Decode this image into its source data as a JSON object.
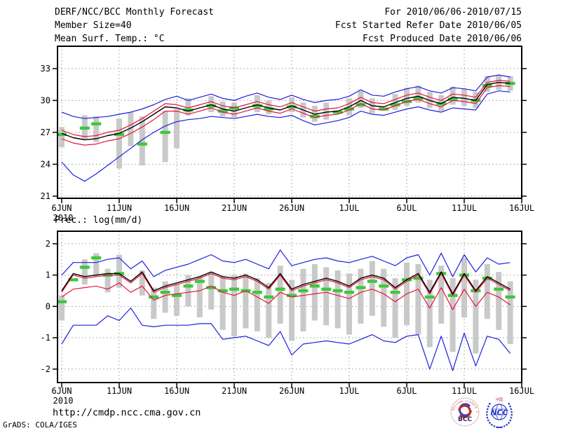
{
  "header": {
    "title": "DERF/NCC/BCC Monthly Forecast",
    "for_range": "For 2010/06/06-2010/07/15",
    "member_size": "Member Size=40",
    "fcst_started": "Fcst Started Refer Date 2010/06/05",
    "temp_panel_label": "Mean Surf. Temp.: °C",
    "fcst_produced": "Fcst Produced Date 2010/06/06",
    "prec_panel_label": "Prec.: log(mm/d)"
  },
  "footer": {
    "url": "http://cmdp.ncc.cma.gov.cn",
    "grads_credit": "GrADS: COLA/IGES",
    "logos": [
      {
        "name": "bcc-logo",
        "label": "BCC",
        "ring_text": "BEIJING CLIMATE CENTER"
      },
      {
        "name": "ncc-logo",
        "label": "NCC",
        "top_text": "中国"
      }
    ]
  },
  "colors": {
    "blue": "#1e1ee0",
    "red": "#e6143c",
    "black": "#000000",
    "green": "#3cc83c",
    "bar": "#c9c9c9",
    "grid": "#999999",
    "bcc_navy": "#1a2a7a",
    "logo_blue": "#2b3fd0",
    "logo_red": "#cc2222"
  },
  "chart_data": [
    {
      "type": "line",
      "name": "mean-surface-temperature",
      "title": "Mean Surf. Temp.: °C",
      "xlabel": "",
      "ylabel": "°C",
      "grid": "dotted",
      "legend": false,
      "n_days": 40,
      "x_range": [
        "6JUN2010",
        "16JUL2010"
      ],
      "x_tick_labels": [
        "6JUN",
        "11JUN",
        "16JUN",
        "21JUN",
        "26JUN",
        "1JUL",
        "6JUL",
        "11JUL",
        "16JUL"
      ],
      "x_tick_days": [
        0,
        5,
        10,
        15,
        20,
        25,
        30,
        35,
        40
      ],
      "year_label": "2010",
      "ylim": [
        20.8,
        35.1
      ],
      "yticks": [
        21,
        24,
        27,
        30,
        33
      ],
      "series": [
        {
          "name": "upper-blue-envelope",
          "color": "blue",
          "width": 1.2,
          "values": [
            28.9,
            28.5,
            28.3,
            28.4,
            28.5,
            28.7,
            28.9,
            29.2,
            29.6,
            30.1,
            30.4,
            30.0,
            30.3,
            30.6,
            30.2,
            30.0,
            30.4,
            30.7,
            30.3,
            30.1,
            30.5,
            30.1,
            29.8,
            30.0,
            30.1,
            30.4,
            31.0,
            30.5,
            30.4,
            30.8,
            31.1,
            31.3,
            30.9,
            30.7,
            31.2,
            31.1,
            30.9,
            32.2,
            32.4,
            32.2
          ]
        },
        {
          "name": "lower-blue-envelope",
          "color": "blue",
          "width": 1.2,
          "values": [
            24.2,
            23.0,
            22.4,
            23.1,
            23.9,
            24.7,
            25.5,
            26.3,
            27.0,
            27.6,
            28.0,
            28.2,
            28.3,
            28.5,
            28.4,
            28.3,
            28.5,
            28.7,
            28.5,
            28.4,
            28.6,
            28.1,
            27.7,
            27.9,
            28.1,
            28.4,
            29.0,
            28.7,
            28.6,
            28.9,
            29.2,
            29.4,
            29.1,
            28.9,
            29.3,
            29.2,
            29.1,
            30.6,
            30.9,
            30.8
          ]
        },
        {
          "name": "upper-red-band",
          "color": "red",
          "width": 1.2,
          "values": [
            27.2,
            26.8,
            26.6,
            26.7,
            27.0,
            27.2,
            27.7,
            28.3,
            29.0,
            29.7,
            29.6,
            29.3,
            29.6,
            29.9,
            29.5,
            29.3,
            29.6,
            29.9,
            29.6,
            29.4,
            29.8,
            29.4,
            29.0,
            29.2,
            29.3,
            29.7,
            30.3,
            29.8,
            29.7,
            30.1,
            30.5,
            30.7,
            30.3,
            30.0,
            30.6,
            30.5,
            30.3,
            31.7,
            31.9,
            31.8
          ]
        },
        {
          "name": "lower-red-band",
          "color": "red",
          "width": 1.2,
          "values": [
            26.4,
            26.0,
            25.8,
            25.9,
            26.2,
            26.4,
            26.9,
            27.5,
            28.2,
            29.0,
            29.0,
            28.7,
            29.0,
            29.3,
            28.9,
            28.7,
            29.0,
            29.3,
            29.0,
            28.8,
            29.2,
            28.8,
            28.4,
            28.6,
            28.7,
            29.1,
            29.7,
            29.2,
            29.1,
            29.5,
            29.9,
            30.1,
            29.7,
            29.4,
            30.0,
            29.9,
            29.7,
            31.2,
            31.4,
            31.3
          ]
        },
        {
          "name": "ensemble-mean-black",
          "color": "black",
          "width": 1.4,
          "values": [
            26.9,
            26.5,
            26.3,
            26.4,
            26.7,
            26.9,
            27.4,
            28.0,
            28.7,
            29.4,
            29.3,
            29.0,
            29.3,
            29.6,
            29.2,
            29.0,
            29.3,
            29.6,
            29.3,
            29.1,
            29.5,
            29.1,
            28.7,
            28.9,
            29.0,
            29.4,
            30.0,
            29.5,
            29.4,
            29.8,
            30.2,
            30.4,
            30.0,
            29.7,
            30.3,
            30.2,
            30.0,
            31.5,
            31.7,
            31.6
          ]
        }
      ],
      "spread_bars": [
        [
          25.6,
          27.5
        ],
        null,
        [
          26.4,
          28.6
        ],
        [
          26.1,
          28.5
        ],
        null,
        [
          23.6,
          28.3
        ],
        [
          25.7,
          28.9
        ],
        [
          23.9,
          28.5
        ],
        null,
        [
          24.2,
          29.0
        ],
        [
          25.5,
          29.2
        ],
        [
          28.6,
          30.2
        ],
        null,
        [
          28.9,
          30.4
        ],
        [
          28.5,
          29.9
        ],
        [
          28.4,
          29.8
        ],
        null,
        [
          28.9,
          30.5
        ],
        [
          28.7,
          30.0
        ],
        null,
        [
          28.9,
          30.3
        ],
        [
          28.4,
          29.8
        ],
        [
          28.0,
          29.5
        ],
        [
          28.2,
          29.8
        ],
        null,
        [
          28.6,
          30.2
        ],
        [
          29.3,
          30.9
        ],
        [
          28.8,
          30.2
        ],
        null,
        [
          29.1,
          30.6
        ],
        [
          29.5,
          31.2
        ],
        [
          29.8,
          31.4
        ],
        [
          29.3,
          30.8
        ],
        [
          29.0,
          30.5
        ],
        [
          29.6,
          31.3
        ],
        [
          29.5,
          31.1
        ],
        [
          29.3,
          30.8
        ],
        [
          30.8,
          32.3
        ],
        [
          31.0,
          32.4
        ],
        [
          30.9,
          32.3
        ]
      ],
      "green_dashes": [
        26.8,
        null,
        27.4,
        27.8,
        null,
        26.8,
        null,
        25.9,
        null,
        27.0,
        null,
        29.1,
        null,
        29.5,
        29.0,
        29.3,
        null,
        29.5,
        29.2,
        null,
        29.4,
        null,
        28.5,
        null,
        28.9,
        29.2,
        29.6,
        null,
        29.2,
        29.6,
        29.9,
        30.2,
        null,
        29.7,
        30.1,
        null,
        30.0,
        31.4,
        null,
        31.6
      ]
    },
    {
      "type": "line",
      "name": "precipitation-log",
      "title": "Prec.: log(mm/d)",
      "xlabel": "",
      "ylabel": "log(mm/d)",
      "grid": "dotted",
      "legend": false,
      "n_days": 40,
      "x_range": [
        "6JUN2010",
        "16JUL2010"
      ],
      "x_tick_labels": [
        "6JUN",
        "11JUN",
        "16JUN",
        "21JUN",
        "26JUN",
        "1JUL",
        "6JUL",
        "11JUL",
        "16JUL"
      ],
      "x_tick_days": [
        0,
        5,
        10,
        15,
        20,
        25,
        30,
        35,
        40
      ],
      "year_label": "2010",
      "ylim": [
        -2.43,
        2.4
      ],
      "yticks": [
        -2,
        -1,
        0,
        1,
        2
      ],
      "series": [
        {
          "name": "upper-blue-envelope",
          "color": "blue",
          "width": 1.2,
          "values": [
            1.0,
            1.4,
            1.4,
            1.4,
            1.5,
            1.55,
            1.2,
            1.45,
            0.95,
            1.15,
            1.25,
            1.35,
            1.5,
            1.65,
            1.45,
            1.4,
            1.5,
            1.35,
            1.2,
            1.8,
            1.3,
            1.4,
            1.5,
            1.55,
            1.45,
            1.4,
            1.5,
            1.6,
            1.45,
            1.3,
            1.55,
            1.65,
            1.0,
            1.7,
            0.95,
            1.65,
            1.1,
            1.55,
            1.35,
            1.4
          ]
        },
        {
          "name": "lower-blue-envelope",
          "color": "blue",
          "width": 1.2,
          "values": [
            -1.2,
            -0.6,
            -0.6,
            -0.6,
            -0.3,
            -0.45,
            -0.05,
            -0.6,
            -0.65,
            -0.6,
            -0.6,
            -0.6,
            -0.55,
            -0.55,
            -1.05,
            -1.0,
            -0.95,
            -1.1,
            -1.25,
            -0.8,
            -1.55,
            -1.2,
            -1.15,
            -1.1,
            -1.15,
            -1.2,
            -1.05,
            -0.9,
            -1.1,
            -1.15,
            -0.95,
            -0.9,
            -2.0,
            -0.95,
            -2.05,
            -0.85,
            -1.9,
            -0.95,
            -1.05,
            -1.5
          ]
        },
        {
          "name": "upper-red-band",
          "color": "red",
          "width": 1.2,
          "values": [
            0.45,
            1.0,
            0.9,
            0.95,
            1.0,
            1.0,
            0.75,
            1.05,
            0.45,
            0.6,
            0.7,
            0.8,
            0.9,
            1.05,
            0.9,
            0.85,
            0.95,
            0.8,
            0.55,
            1.0,
            0.5,
            0.65,
            0.75,
            0.85,
            0.75,
            0.6,
            0.85,
            0.95,
            0.85,
            0.55,
            0.8,
            1.0,
            0.4,
            1.05,
            0.35,
            1.0,
            0.45,
            0.9,
            0.7,
            0.5
          ]
        },
        {
          "name": "lower-red-band",
          "color": "red",
          "width": 1.2,
          "values": [
            0.3,
            0.55,
            0.6,
            0.65,
            0.55,
            0.75,
            0.45,
            0.65,
            0.2,
            0.35,
            0.4,
            0.45,
            0.5,
            0.65,
            0.45,
            0.35,
            0.5,
            0.3,
            0.1,
            0.45,
            0.3,
            0.35,
            0.4,
            0.45,
            0.35,
            0.25,
            0.45,
            0.55,
            0.4,
            0.15,
            0.4,
            0.55,
            -0.05,
            0.6,
            -0.1,
            0.55,
            0.0,
            0.45,
            0.3,
            0.05
          ]
        },
        {
          "name": "ensemble-mean-black",
          "color": "black",
          "width": 1.4,
          "values": [
            0.5,
            1.05,
            0.95,
            1.0,
            1.05,
            1.05,
            0.8,
            1.1,
            0.5,
            0.65,
            0.75,
            0.85,
            0.95,
            1.1,
            0.95,
            0.9,
            1.0,
            0.85,
            0.6,
            1.05,
            0.55,
            0.7,
            0.8,
            0.9,
            0.8,
            0.65,
            0.9,
            1.0,
            0.9,
            0.6,
            0.85,
            1.05,
            0.45,
            1.1,
            0.4,
            1.05,
            0.5,
            0.95,
            0.75,
            0.55
          ]
        }
      ],
      "spread_bars": [
        [
          -0.45,
          0.35
        ],
        null,
        [
          0.7,
          1.5
        ],
        [
          0.95,
          1.7
        ],
        [
          0.45,
          1.2
        ],
        [
          0.6,
          1.65
        ],
        null,
        [
          0.35,
          1.15
        ],
        [
          -0.4,
          0.6
        ],
        [
          -0.2,
          0.8
        ],
        [
          -0.3,
          0.7
        ],
        [
          0.0,
          1.0
        ],
        [
          -0.35,
          0.95
        ],
        [
          -0.1,
          1.1
        ],
        [
          -0.75,
          0.95
        ],
        [
          -0.95,
          1.0
        ],
        [
          -0.7,
          1.05
        ],
        [
          -0.8,
          0.9
        ],
        [
          -1.0,
          0.75
        ],
        [
          -0.55,
          1.3
        ],
        [
          -1.1,
          0.85
        ],
        [
          -0.8,
          1.2
        ],
        [
          -0.45,
          1.35
        ],
        [
          -0.6,
          1.25
        ],
        [
          -0.7,
          1.15
        ],
        [
          -0.9,
          1.05
        ],
        [
          -0.55,
          1.2
        ],
        [
          -0.3,
          1.45
        ],
        [
          -0.65,
          1.2
        ],
        [
          -1.0,
          0.9
        ],
        [
          -0.6,
          1.4
        ],
        [
          -0.9,
          1.35
        ],
        [
          -1.3,
          0.85
        ],
        [
          -0.55,
          1.3
        ],
        [
          -1.45,
          0.9
        ],
        [
          -0.35,
          1.55
        ],
        [
          -1.5,
          0.85
        ],
        [
          -0.4,
          1.35
        ],
        [
          -0.75,
          1.1
        ],
        [
          -1.2,
          0.8
        ]
      ],
      "green_dashes": [
        0.15,
        0.85,
        1.25,
        1.55,
        1.0,
        1.05,
        null,
        null,
        0.3,
        0.45,
        0.35,
        0.65,
        0.8,
        0.6,
        0.5,
        0.55,
        0.5,
        0.45,
        0.3,
        0.55,
        0.35,
        0.5,
        0.65,
        0.55,
        0.5,
        0.45,
        0.6,
        0.8,
        0.65,
        0.45,
        0.85,
        0.9,
        0.3,
        1.05,
        0.35,
        1.0,
        0.5,
        0.9,
        0.55,
        0.3
      ]
    }
  ]
}
